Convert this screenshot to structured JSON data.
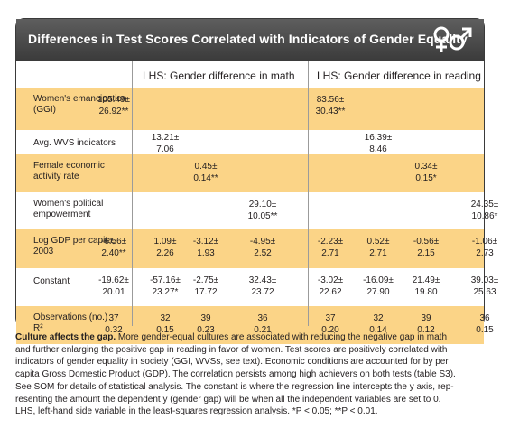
{
  "title": "Differences in Test Scores Correlated with Indicators of Gender Equality",
  "icon": "gender-symbols-icon",
  "columns": {
    "math": "LHS: Gender difference in math",
    "reading": "LHS: Gender difference in reading"
  },
  "rows": [
    {
      "label": "Women's emancipation\n(GGI)",
      "cells": [
        {
          "col": 0,
          "text": "105.49±\n26.92**"
        },
        {
          "col": 4,
          "text": "83.56±\n30.43**"
        }
      ]
    },
    {
      "label": "Avg. WVS indicators",
      "cells": [
        {
          "col": 1,
          "text": "13.21±\n7.06"
        },
        {
          "col": 5,
          "text": "16.39±\n8.46"
        }
      ]
    },
    {
      "label": "Female economic\nactivity rate",
      "cells": [
        {
          "col": 2,
          "text": "0.45±\n0.14**"
        },
        {
          "col": 6,
          "text": "0.34±\n0.15*"
        }
      ]
    },
    {
      "label": "Women's political\nempowerment",
      "cells": [
        {
          "col": 3,
          "text": "29.10±\n10.05**"
        },
        {
          "col": 7,
          "text": "24.35±\n10.86*"
        }
      ]
    },
    {
      "label": "Log GDP per capita,\n2003",
      "cells": [
        {
          "col": 0,
          "text": "-6.56±\n2.40**"
        },
        {
          "col": 1,
          "text": "1.09±\n2.26"
        },
        {
          "col": 2,
          "text": "-3.12±\n1.93"
        },
        {
          "col": 3,
          "text": "-4.95±\n2.52"
        },
        {
          "col": 4,
          "text": "-2.23±\n2.71"
        },
        {
          "col": 5,
          "text": "0.52±\n2.71"
        },
        {
          "col": 6,
          "text": "-0.56±\n2.15"
        },
        {
          "col": 7,
          "text": "-1.06±\n2.73"
        }
      ]
    },
    {
      "label": "Constant",
      "cells": [
        {
          "col": 0,
          "text": "-19.62±\n20.01"
        },
        {
          "col": 1,
          "text": "-57.16±\n23.27*"
        },
        {
          "col": 2,
          "text": "-2.75±\n17.72"
        },
        {
          "col": 3,
          "text": "32.43±\n23.72"
        },
        {
          "col": 4,
          "text": "-3.02±\n22.62"
        },
        {
          "col": 5,
          "text": "-16.09±\n27.90"
        },
        {
          "col": 6,
          "text": "21.49±\n19.80"
        },
        {
          "col": 7,
          "text": "39.03±\n25.63"
        }
      ]
    },
    {
      "label": "Observations (no.)\nR²",
      "cells": [
        {
          "col": 0,
          "text": "37\n0.32"
        },
        {
          "col": 1,
          "text": "32\n0.15"
        },
        {
          "col": 2,
          "text": "39\n0.23"
        },
        {
          "col": 3,
          "text": "36\n0.21"
        },
        {
          "col": 4,
          "text": "37\n0.20"
        },
        {
          "col": 5,
          "text": "32\n0.14"
        },
        {
          "col": 6,
          "text": "39\n0.12"
        },
        {
          "col": 7,
          "text": "36\n0.15"
        }
      ]
    }
  ],
  "caption": {
    "lead": "Culture affects the gap.",
    "lines": [
      " More gender-equal cultures are associated with reducing the negative gap in math",
      "and further enlarging the positive gap in reading in favor of women. Test scores are positively correlated with",
      "indicators of gender equality in society (GGI, WVSs, see text). Economic conditions are accounted for by per",
      "capita Gross Domestic Product (GDP). The correlation persists among high achievers on both tests (table S3).",
      "See SOM for details of statistical analysis. The constant is where the regression line intercepts the y axis, rep-",
      "resenting the amount the dependent y (gender gap) will be when all the independent variables are set to 0.",
      "LHS, left-hand side variable in the least-squares regression analysis. *P < 0.05; **P < 0.01."
    ]
  },
  "colors": {
    "header": "#4a4a4a",
    "highlight": "#fbd487"
  }
}
